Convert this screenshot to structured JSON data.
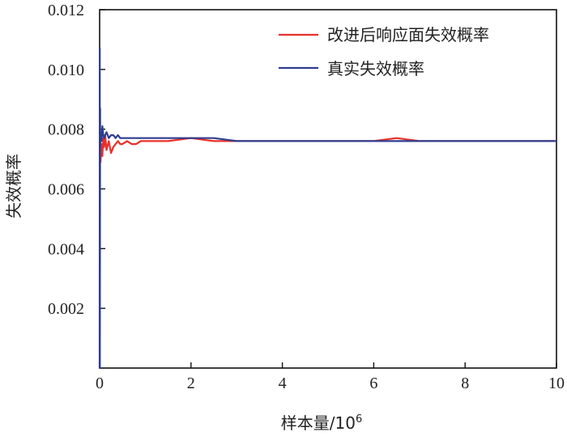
{
  "chart_data": {
    "type": "line",
    "title": "",
    "xlabel": "样本量/10",
    "xlabel_sup": "6",
    "ylabel": "失效概率",
    "xlim": [
      0,
      10
    ],
    "ylim": [
      0,
      0.012
    ],
    "x_ticks": [
      0,
      2,
      4,
      6,
      8,
      10
    ],
    "x_tick_labels": [
      "0",
      "2",
      "4",
      "6",
      "8",
      "10"
    ],
    "y_ticks": [
      0.002,
      0.004,
      0.006,
      0.008,
      0.01,
      0.012
    ],
    "y_tick_labels": [
      "0.002",
      "0.004",
      "0.006",
      "0.008",
      "0.010",
      "0.012"
    ],
    "grid": false,
    "legend_position": "top-right",
    "series": [
      {
        "name": "改进后响应面失效概率",
        "color": "#e8302a",
        "x": [
          0.0,
          0.02,
          0.04,
          0.06,
          0.08,
          0.1,
          0.12,
          0.15,
          0.2,
          0.25,
          0.3,
          0.35,
          0.4,
          0.45,
          0.5,
          0.6,
          0.7,
          0.8,
          0.9,
          1.0,
          1.2,
          1.5,
          2.0,
          2.5,
          3.0,
          3.5,
          4.0,
          4.5,
          5.0,
          5.5,
          6.0,
          6.5,
          7.0,
          7.5,
          8.0,
          8.5,
          9.0,
          9.5,
          10.0
        ],
        "y": [
          0.0072,
          0.0069,
          0.0075,
          0.0071,
          0.0077,
          0.0074,
          0.0078,
          0.0073,
          0.0076,
          0.0072,
          0.0074,
          0.0075,
          0.0076,
          0.0075,
          0.0075,
          0.0076,
          0.0075,
          0.0075,
          0.0076,
          0.0076,
          0.0076,
          0.0076,
          0.0077,
          0.0076,
          0.0076,
          0.0076,
          0.0076,
          0.0076,
          0.0076,
          0.0076,
          0.0076,
          0.0077,
          0.0076,
          0.0076,
          0.0076,
          0.0076,
          0.0076,
          0.0076,
          0.0076
        ]
      },
      {
        "name": "真实失效概率",
        "color": "#2e3d8f",
        "x": [
          0.0,
          0.003,
          0.006,
          0.01,
          0.015,
          0.02,
          0.04,
          0.06,
          0.08,
          0.1,
          0.12,
          0.15,
          0.2,
          0.25,
          0.3,
          0.35,
          0.4,
          0.45,
          0.5,
          0.6,
          0.7,
          0.8,
          0.9,
          1.0,
          1.2,
          1.5,
          2.0,
          2.5,
          3.0,
          3.5,
          4.0,
          4.5,
          5.0,
          5.5,
          6.0,
          6.5,
          7.0,
          7.5,
          8.0,
          8.5,
          9.0,
          9.5,
          10.0
        ],
        "y": [
          0.0,
          0.0107,
          0.0,
          0.0087,
          0.0074,
          0.0079,
          0.0076,
          0.0081,
          0.0078,
          0.0077,
          0.0078,
          0.0079,
          0.0077,
          0.0078,
          0.0078,
          0.0077,
          0.0078,
          0.0077,
          0.0077,
          0.0077,
          0.0077,
          0.0077,
          0.0077,
          0.0077,
          0.0077,
          0.0077,
          0.0077,
          0.0077,
          0.0076,
          0.0076,
          0.0076,
          0.0076,
          0.0076,
          0.0076,
          0.0076,
          0.0076,
          0.0076,
          0.0076,
          0.0076,
          0.0076,
          0.0076,
          0.0076,
          0.0076
        ]
      }
    ]
  }
}
